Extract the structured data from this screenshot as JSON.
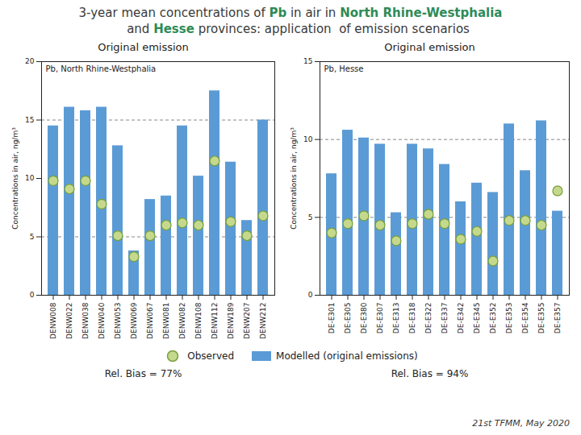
{
  "title": [
    [
      {
        "text": "3-year mean concentrations of ",
        "color": "#3a3a3a",
        "bold": false
      },
      {
        "text": "Pb",
        "color": "#2e8b57",
        "bold": true
      },
      {
        "text": " in air in ",
        "color": "#3a3a3a",
        "bold": false
      },
      {
        "text": "North Rhine-Westphalia",
        "color": "#2e8b57",
        "bold": true
      }
    ],
    [
      {
        "text": "    and ",
        "color": "#3a3a3a",
        "bold": false
      },
      {
        "text": "Hesse",
        "color": "#2e8b57",
        "bold": true
      },
      {
        "text": " provinces: application  of emission scenarios",
        "color": "#3a3a3a",
        "bold": false
      }
    ]
  ],
  "legend": "bottom",
  "footer": "21st TFMM, May 2020",
  "chart_data": [
    {
      "type": "bar",
      "subtitle": "Original emission",
      "title": "Pb, North Rhine-Westphalia",
      "ylabel": "Concentrations in air, ng/m³",
      "ylim": [
        0,
        20
      ],
      "yticks": [
        0,
        5,
        10,
        15,
        20
      ],
      "reference_lines": [
        5,
        15
      ],
      "grid": false,
      "annotations": [
        "Rel. Bias = 77%"
      ],
      "categories": [
        "DENW008",
        "DENW022",
        "DENW038",
        "DENW040",
        "DENW053",
        "DENW069",
        "DENW067",
        "DENW081",
        "DENW082",
        "DENW108",
        "DENW112",
        "DENW189",
        "DENW207",
        "DENW212"
      ],
      "series": [
        {
          "name": "Observed",
          "type": "scatter",
          "color": "#c5d98c",
          "edge_color": "#7a9e3c",
          "values": [
            9.8,
            9.1,
            9.8,
            7.8,
            5.1,
            3.3,
            5.1,
            6.0,
            6.2,
            6.0,
            11.5,
            6.3,
            5.1,
            6.8
          ]
        },
        {
          "name": "Modelled (original emissions)",
          "type": "bar",
          "color": "#5b9bd5",
          "values": [
            14.5,
            16.1,
            15.8,
            16.1,
            12.8,
            3.8,
            8.2,
            8.5,
            14.5,
            10.2,
            17.5,
            11.4,
            6.4,
            15.0
          ]
        }
      ]
    },
    {
      "type": "bar",
      "subtitle": "Original emission",
      "title": "Pb, Hesse",
      "ylabel": "Concentrations in air, ng/m³",
      "ylim": [
        0,
        15
      ],
      "yticks": [
        0,
        5,
        10,
        15
      ],
      "reference_lines": [
        5,
        10
      ],
      "grid": false,
      "annotations": [
        "Rel. Bias = 94%"
      ],
      "categories": [
        "DE-E301",
        "DE-E305",
        "DE-E380",
        "DE-E307",
        "DE-E313",
        "DE-E318",
        "DE-E322",
        "DE-E337",
        "DE-E342",
        "DE-E345",
        "DE-E352",
        "DE-E353",
        "DE-E354",
        "DE-E355",
        "DE-E357"
      ],
      "series": [
        {
          "name": "Observed",
          "type": "scatter",
          "color": "#c5d98c",
          "edge_color": "#7a9e3c",
          "values": [
            4.0,
            4.6,
            5.1,
            4.5,
            3.5,
            4.6,
            5.2,
            4.6,
            3.6,
            4.1,
            2.2,
            4.8,
            4.8,
            4.5,
            6.7
          ]
        },
        {
          "name": "Modelled (original emissions)",
          "type": "bar",
          "color": "#5b9bd5",
          "values": [
            7.8,
            10.6,
            10.1,
            9.7,
            5.3,
            9.7,
            9.4,
            8.4,
            6.0,
            7.2,
            6.6,
            11.0,
            8.0,
            11.2,
            5.4
          ]
        }
      ]
    }
  ]
}
